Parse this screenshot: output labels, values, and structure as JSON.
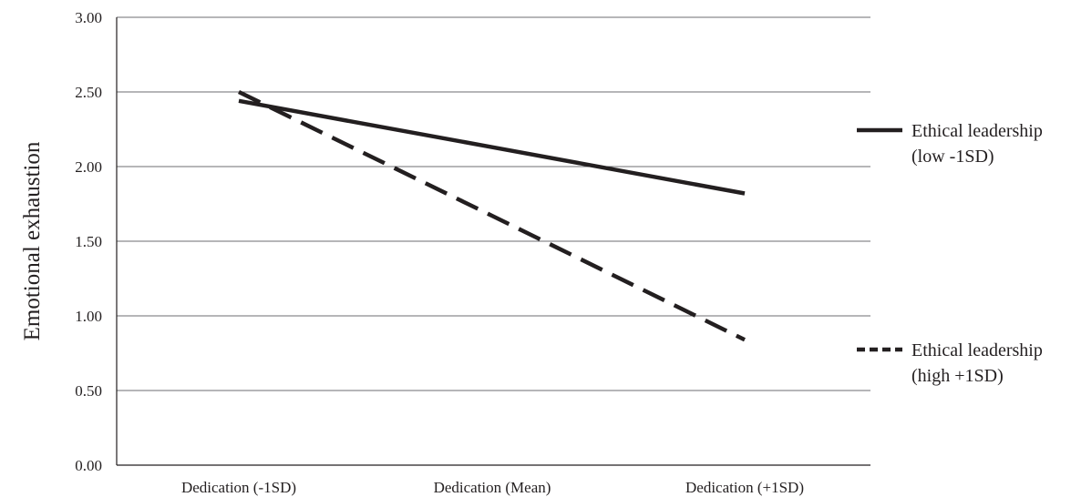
{
  "chart_data": {
    "type": "line",
    "title": "",
    "xlabel": "",
    "ylabel": "Emotional exhaustion",
    "categories": [
      "Dedication (-1SD)",
      "Dedication (Mean)",
      "Dedication (+1SD)"
    ],
    "ylim": [
      0,
      3
    ],
    "y_ticks": [
      "0.00",
      "0.50",
      "1.00",
      "1.50",
      "2.00",
      "2.50",
      "3.00"
    ],
    "grid": true,
    "legend_position": "right",
    "series": [
      {
        "name": "Ethical leadership (low -1SD)",
        "legend_lines": [
          "Ethical leadership",
          "(low -1SD)"
        ],
        "style": "solid",
        "color": "#231f20",
        "values": [
          2.44,
          2.13,
          1.82
        ]
      },
      {
        "name": "Ethical leadership (high +1SD)",
        "legend_lines": [
          "Ethical leadership",
          "(high +1SD)"
        ],
        "style": "dashed",
        "color": "#231f20",
        "values": [
          2.5,
          1.67,
          0.84
        ]
      }
    ]
  }
}
